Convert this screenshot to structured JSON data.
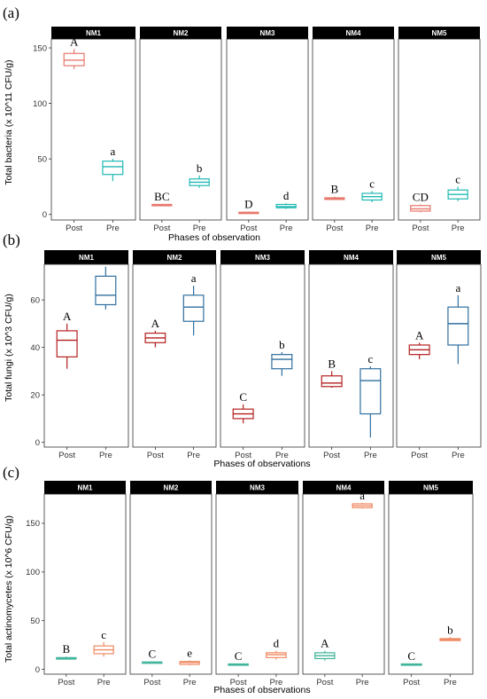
{
  "figure": {
    "panels": [
      {
        "label": "(a)",
        "ylabel": "Total bacteria (x 10^11 CFU/g)",
        "xlabel": "Phases of observation",
        "categories": [
          "Post",
          "Pre"
        ],
        "ylim": [
          -5,
          158
        ],
        "yticks": [
          0,
          50,
          100,
          150
        ],
        "colors": {
          "Post": "#e8776c",
          "Pre": "#20b9b3"
        },
        "facets": [
          {
            "name": "NM1",
            "boxes": [
              {
                "phase": "Post",
                "min": 131,
                "q1": 134,
                "median": 139,
                "q3": 145,
                "max": 149,
                "letter": "A"
              },
              {
                "phase": "Pre",
                "min": 30,
                "q1": 36,
                "median": 43,
                "q3": 48,
                "max": 50,
                "letter": "a"
              }
            ]
          },
          {
            "name": "NM2",
            "boxes": [
              {
                "phase": "Post",
                "min": 7.5,
                "q1": 8,
                "median": 8.5,
                "q3": 9,
                "max": 9.5,
                "letter": "BC"
              },
              {
                "phase": "Pre",
                "min": 24,
                "q1": 26,
                "median": 29,
                "q3": 32,
                "max": 35,
                "letter": "b"
              }
            ]
          },
          {
            "name": "NM3",
            "boxes": [
              {
                "phase": "Post",
                "min": 0.5,
                "q1": 1,
                "median": 1.5,
                "q3": 2,
                "max": 2.5,
                "letter": "D"
              },
              {
                "phase": "Pre",
                "min": 5,
                "q1": 6,
                "median": 7,
                "q3": 9,
                "max": 10,
                "letter": "d"
              }
            ]
          },
          {
            "name": "NM4",
            "boxes": [
              {
                "phase": "Post",
                "min": 13,
                "q1": 13.5,
                "median": 14,
                "q3": 15,
                "max": 16,
                "letter": "B"
              },
              {
                "phase": "Pre",
                "min": 11,
                "q1": 13,
                "median": 16,
                "q3": 19,
                "max": 21,
                "letter": "c"
              }
            ]
          },
          {
            "name": "NM5",
            "boxes": [
              {
                "phase": "Post",
                "min": 2,
                "q1": 3,
                "median": 5,
                "q3": 8,
                "max": 9,
                "letter": "CD"
              },
              {
                "phase": "Pre",
                "min": 12,
                "q1": 14,
                "median": 18,
                "q3": 22,
                "max": 25,
                "letter": "c"
              }
            ]
          }
        ]
      },
      {
        "label": "(b)",
        "ylabel": "Total fungi (x 10^3 CFU/g)",
        "xlabel": "Phases of observations",
        "categories": [
          "Post",
          "Pre"
        ],
        "ylim": [
          -2,
          75
        ],
        "yticks": [
          0,
          20,
          40,
          60
        ],
        "colors": {
          "Post": "#b51f1f",
          "Pre": "#2f6f9f"
        },
        "facets": [
          {
            "name": "NM1",
            "boxes": [
              {
                "phase": "Post",
                "min": 31,
                "q1": 36,
                "median": 43,
                "q3": 47,
                "max": 50,
                "letter": "A"
              },
              {
                "phase": "Pre",
                "min": 56,
                "q1": 58,
                "median": 62,
                "q3": 70,
                "max": 74,
                "letter": "a"
              }
            ]
          },
          {
            "name": "NM2",
            "boxes": [
              {
                "phase": "Post",
                "min": 40,
                "q1": 42,
                "median": 44,
                "q3": 46,
                "max": 47,
                "letter": "A"
              },
              {
                "phase": "Pre",
                "min": 45,
                "q1": 51,
                "median": 57,
                "q3": 62,
                "max": 66,
                "letter": "a"
              }
            ]
          },
          {
            "name": "NM3",
            "boxes": [
              {
                "phase": "Post",
                "min": 8,
                "q1": 10,
                "median": 12,
                "q3": 14,
                "max": 16,
                "letter": "C"
              },
              {
                "phase": "Pre",
                "min": 28,
                "q1": 31,
                "median": 35,
                "q3": 37,
                "max": 38,
                "letter": "b"
              }
            ]
          },
          {
            "name": "NM4",
            "boxes": [
              {
                "phase": "Post",
                "min": 23,
                "q1": 23.5,
                "median": 25,
                "q3": 28,
                "max": 30,
                "letter": "B"
              },
              {
                "phase": "Pre",
                "min": 2,
                "q1": 12,
                "median": 26,
                "q3": 31,
                "max": 32,
                "letter": "c"
              }
            ]
          },
          {
            "name": "NM5",
            "boxes": [
              {
                "phase": "Post",
                "min": 35,
                "q1": 37,
                "median": 39,
                "q3": 41,
                "max": 42,
                "letter": "A"
              },
              {
                "phase": "Pre",
                "min": 33,
                "q1": 41,
                "median": 50,
                "q3": 57,
                "max": 62,
                "letter": "a"
              }
            ]
          }
        ]
      },
      {
        "label": "(c)",
        "ylabel": "Total actinomycetes (x 10^6 CFU/g)",
        "xlabel": "Phases of observations",
        "categories": [
          "Post",
          "Pre"
        ],
        "ylim": [
          -5,
          180
        ],
        "yticks": [
          0,
          50,
          100,
          150
        ],
        "colors": {
          "Post": "#3fb49a",
          "Pre": "#ef8a62"
        },
        "facets": [
          {
            "name": "NM1",
            "boxes": [
              {
                "phase": "Post",
                "min": 10,
                "q1": 10.5,
                "median": 11,
                "q3": 12,
                "max": 13,
                "letter": "B"
              },
              {
                "phase": "Pre",
                "min": 13,
                "q1": 16,
                "median": 20,
                "q3": 24,
                "max": 28,
                "letter": "c"
              }
            ]
          },
          {
            "name": "NM2",
            "boxes": [
              {
                "phase": "Post",
                "min": 6.5,
                "q1": 7,
                "median": 7.2,
                "q3": 7.5,
                "max": 8,
                "letter": "C"
              },
              {
                "phase": "Pre",
                "min": 4,
                "q1": 5,
                "median": 7,
                "q3": 8,
                "max": 9,
                "letter": "e"
              }
            ]
          },
          {
            "name": "NM3",
            "boxes": [
              {
                "phase": "Post",
                "min": 4,
                "q1": 4.5,
                "median": 5,
                "q3": 5.5,
                "max": 6,
                "letter": "C"
              },
              {
                "phase": "Pre",
                "min": 10,
                "q1": 12,
                "median": 15,
                "q3": 17,
                "max": 19,
                "letter": "d"
              }
            ]
          },
          {
            "name": "NM4",
            "boxes": [
              {
                "phase": "Post",
                "min": 9,
                "q1": 11,
                "median": 14,
                "q3": 17,
                "max": 19,
                "letter": "A"
              },
              {
                "phase": "Pre",
                "min": 165,
                "q1": 166,
                "median": 168,
                "q3": 170,
                "max": 171,
                "letter": "a"
              }
            ]
          },
          {
            "name": "NM5",
            "boxes": [
              {
                "phase": "Post",
                "min": 4,
                "q1": 4.5,
                "median": 5,
                "q3": 5.5,
                "max": 6,
                "letter": "C"
              },
              {
                "phase": "Pre",
                "min": 29,
                "q1": 29.5,
                "median": 30.5,
                "q3": 31.5,
                "max": 33,
                "letter": "b"
              }
            ]
          }
        ]
      }
    ]
  }
}
